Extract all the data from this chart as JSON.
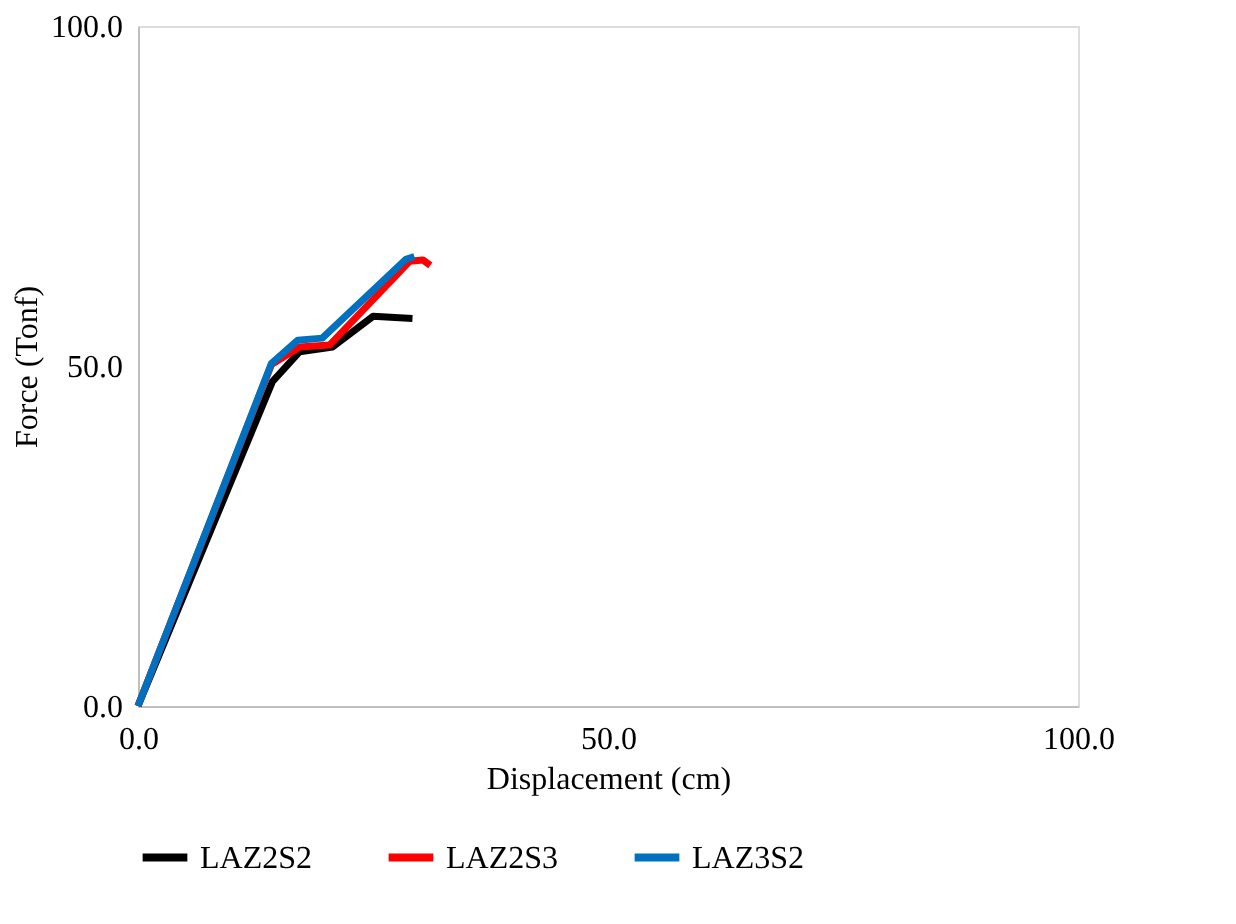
{
  "chart_data": {
    "type": "line",
    "xlabel": "Displacement (cm)",
    "ylabel": "Force (Tonf)",
    "xlim": [
      0,
      100
    ],
    "ylim": [
      0,
      100
    ],
    "xticks": [
      {
        "value": 0,
        "label": "0.0"
      },
      {
        "value": 50,
        "label": "50.0"
      },
      {
        "value": 100,
        "label": "100.0"
      }
    ],
    "yticks": [
      {
        "value": 0,
        "label": "0.0"
      },
      {
        "value": 50,
        "label": "50.0"
      },
      {
        "value": 100,
        "label": "100.0"
      }
    ],
    "grid": false,
    "legend": "bottom",
    "marker": "none",
    "line_style": "solid",
    "series": [
      {
        "name": "LAZ2S2",
        "color": "#000000",
        "x": [
          0,
          14.3,
          17.2,
          20.7,
          25.0,
          29.2
        ],
        "values": [
          0,
          47.7,
          52.1,
          52.8,
          57.3,
          57.0
        ]
      },
      {
        "name": "LAZ2S3",
        "color": "#ff0000",
        "x": [
          0,
          14.2,
          17.2,
          20.4,
          28.9,
          30.3,
          31.1
        ],
        "values": [
          0,
          50.2,
          52.8,
          53.1,
          65.4,
          65.6,
          64.8
        ]
      },
      {
        "name": "LAZ3S2",
        "color": "#0070c0",
        "x": [
          0,
          14.2,
          17.0,
          19.6,
          28.5,
          29.4
        ],
        "values": [
          0,
          50.4,
          53.8,
          54.1,
          65.7,
          66.1
        ]
      }
    ]
  }
}
